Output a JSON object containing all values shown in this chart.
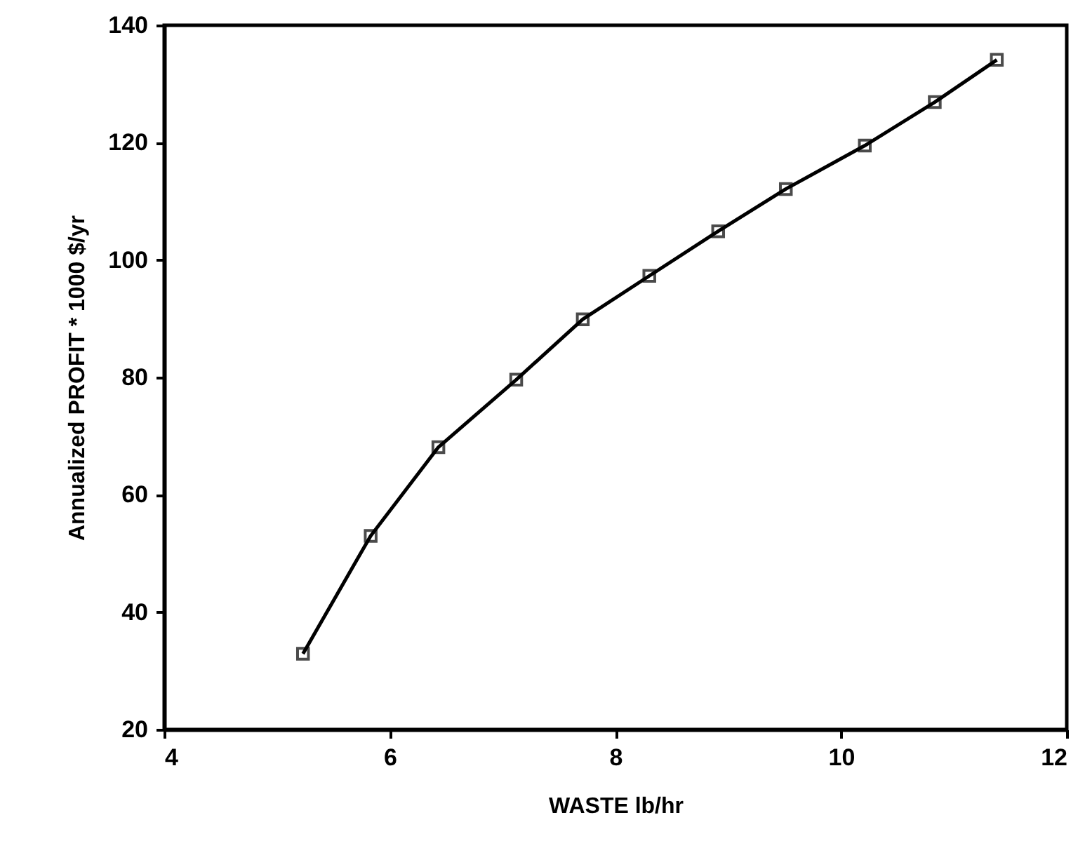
{
  "chart_data": {
    "type": "line",
    "xlabel": "WASTE  lb/hr",
    "ylabel": "Annualized PROFIT * 1000 $/yr",
    "x": [
      5.23,
      5.83,
      6.43,
      7.12,
      7.71,
      8.3,
      8.91,
      9.51,
      10.21,
      10.83,
      11.38
    ],
    "series": [
      {
        "color": "#000000",
        "values": [
          32.9,
          53,
          68.1,
          79.6,
          89.9,
          97.3,
          104.9,
          112.1,
          119.5,
          126.9,
          134.1
        ]
      }
    ],
    "xlim": [
      4,
      12
    ],
    "xticks": [
      4,
      6,
      8,
      10,
      12
    ],
    "ylim": [
      20,
      140
    ],
    "yticks": [
      20,
      40,
      60,
      80,
      100,
      120,
      140
    ],
    "grid": false,
    "marker": "square",
    "line_style": "solid"
  }
}
